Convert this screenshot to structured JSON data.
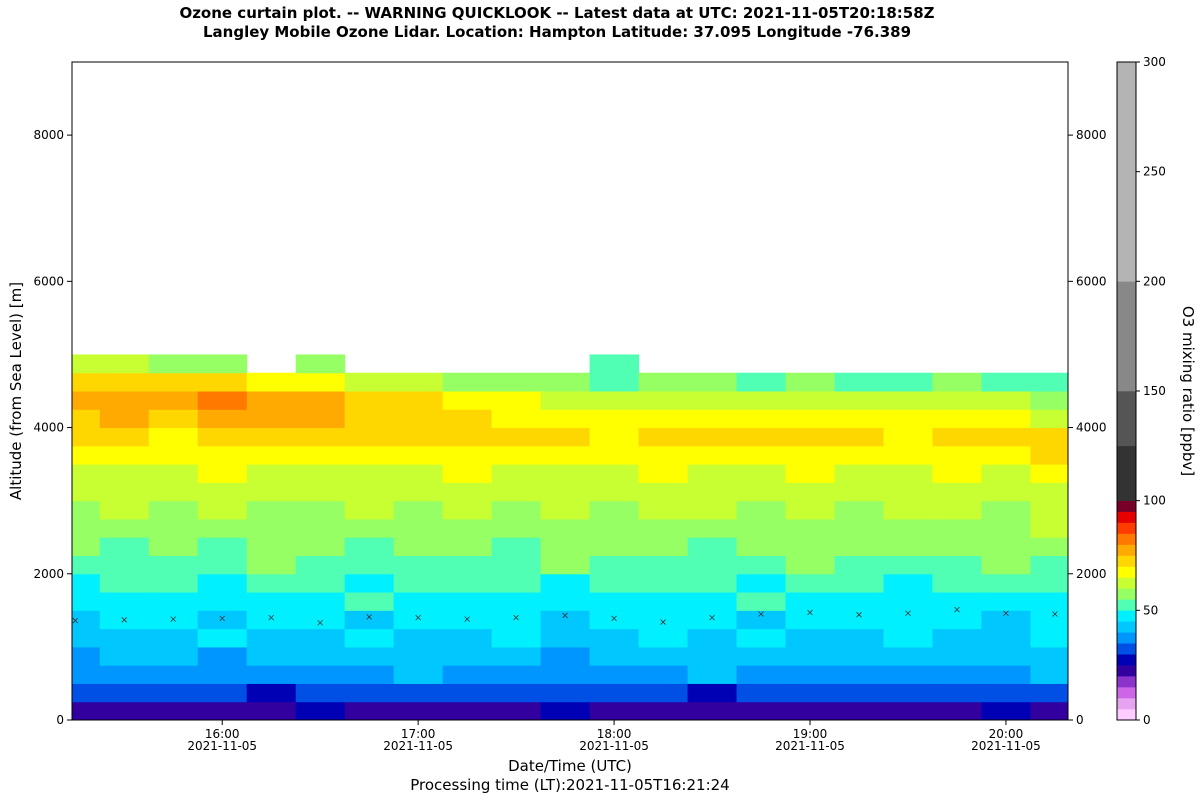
{
  "chart_data": {
    "type": "heatmap",
    "title": "Ozone curtain plot. -- WARNING QUICKLOOK -- Latest data at UTC: 2021-11-05T20:18:58Z",
    "subtitle": "Langley Mobile Ozone Lidar. Location: Hampton Latitude: 37.095 Longitude -76.389",
    "x_label": "Date/Time (UTC)",
    "y_label": "Altitude (from Sea Level) [m]",
    "footnote": "Processing time (LT):2021-11-05T16:21:24",
    "colorbar_label": "O3 mixing ratio [ppbv]",
    "xlim": [
      "2021-11-05T15:14",
      "2021-11-05T20:19"
    ],
    "xticks": [
      {
        "value": "2021-11-05T16:00",
        "label": [
          "16:00",
          "2021-11-05"
        ]
      },
      {
        "value": "2021-11-05T17:00",
        "label": [
          "17:00",
          "2021-11-05"
        ]
      },
      {
        "value": "2021-11-05T18:00",
        "label": [
          "18:00",
          "2021-11-05"
        ]
      },
      {
        "value": "2021-11-05T19:00",
        "label": [
          "19:00",
          "2021-11-05"
        ]
      },
      {
        "value": "2021-11-05T20:00",
        "label": [
          "20:00",
          "2021-11-05"
        ]
      }
    ],
    "ylim": [
      0,
      9000
    ],
    "yticks": [
      0,
      2000,
      4000,
      6000,
      8000
    ],
    "x": [
      "2021-11-05T15:15",
      "2021-11-05T15:30",
      "2021-11-05T15:45",
      "2021-11-05T16:00",
      "2021-11-05T16:15",
      "2021-11-05T16:30",
      "2021-11-05T16:45",
      "2021-11-05T17:00",
      "2021-11-05T17:15",
      "2021-11-05T17:30",
      "2021-11-05T17:45",
      "2021-11-05T18:00",
      "2021-11-05T18:15",
      "2021-11-05T18:30",
      "2021-11-05T18:45",
      "2021-11-05T19:00",
      "2021-11-05T19:15",
      "2021-11-05T19:30",
      "2021-11-05T19:45",
      "2021-11-05T20:00",
      "2021-11-05T20:15"
    ],
    "x_step_minutes": 15,
    "y_edges": [
      0,
      250,
      500,
      750,
      1000,
      1250,
      1500,
      1750,
      2000,
      2250,
      2500,
      2750,
      3000,
      3250,
      3500,
      3750,
      4000,
      4250,
      4500,
      4750,
      5000
    ],
    "z": [
      [
        22,
        24,
        23,
        22,
        24,
        25,
        23,
        22,
        24,
        23,
        25,
        24,
        22,
        23,
        24,
        23,
        22,
        24,
        23,
        25,
        24
      ],
      [
        32,
        30,
        33,
        31,
        29,
        32,
        34,
        30,
        31,
        33,
        30,
        32,
        31,
        29,
        33,
        32,
        30,
        31,
        34,
        32,
        30
      ],
      [
        36,
        38,
        35,
        37,
        39,
        36,
        38,
        40,
        37,
        36,
        39,
        38,
        37,
        40,
        36,
        38,
        39,
        37,
        36,
        38,
        40
      ],
      [
        38,
        40,
        42,
        39,
        41,
        43,
        40,
        42,
        44,
        41,
        39,
        42,
        43,
        40,
        44,
        42,
        41,
        43,
        40,
        42,
        44
      ],
      [
        42,
        44,
        41,
        45,
        43,
        42,
        46,
        44,
        43,
        45,
        42,
        44,
        46,
        43,
        45,
        44,
        42,
        46,
        44,
        43,
        45
      ],
      [
        44,
        46,
        45,
        43,
        47,
        45,
        44,
        46,
        48,
        45,
        44,
        47,
        45,
        46,
        44,
        48,
        45,
        46,
        47,
        44,
        46
      ],
      [
        47,
        48,
        46,
        49,
        47,
        48,
        50,
        47,
        46,
        49,
        48,
        47,
        49,
        48,
        50,
        46,
        48,
        47,
        49,
        48,
        47
      ],
      [
        49,
        50,
        51,
        49,
        52,
        50,
        49,
        51,
        50,
        52,
        49,
        51,
        50,
        52,
        49,
        51,
        50,
        49,
        52,
        50,
        51
      ],
      [
        52,
        54,
        53,
        51,
        55,
        52,
        53,
        54,
        51,
        53,
        55,
        52,
        54,
        53,
        52,
        55,
        53,
        54,
        52,
        56,
        53
      ],
      [
        55,
        54,
        56,
        53,
        55,
        57,
        54,
        56,
        55,
        53,
        57,
        55,
        56,
        54,
        57,
        55,
        56,
        58,
        55,
        57,
        56
      ],
      [
        57,
        58,
        55,
        59,
        57,
        56,
        58,
        57,
        59,
        56,
        58,
        57,
        55,
        59,
        57,
        58,
        56,
        59,
        57,
        58,
        60
      ],
      [
        59,
        60,
        58,
        61,
        59,
        57,
        60,
        58,
        62,
        59,
        60,
        58,
        61,
        60,
        59,
        62,
        58,
        60,
        61,
        59,
        62
      ],
      [
        61,
        62,
        60,
        63,
        61,
        62,
        60,
        63,
        61,
        62,
        64,
        61,
        63,
        62,
        60,
        63,
        62,
        61,
        64,
        62,
        63
      ],
      [
        63,
        64,
        62,
        65,
        63,
        61,
        64,
        62,
        66,
        63,
        64,
        62,
        65,
        63,
        64,
        66,
        63,
        62,
        65,
        64,
        66
      ],
      [
        66,
        67,
        65,
        68,
        66,
        67,
        69,
        66,
        68,
        65,
        67,
        66,
        68,
        67,
        65,
        68,
        66,
        67,
        69,
        66,
        70
      ],
      [
        70,
        72,
        69,
        73,
        71,
        72,
        74,
        73,
        71,
        70,
        72,
        69,
        73,
        71,
        70,
        72,
        71,
        69,
        73,
        70,
        71
      ],
      [
        74,
        76,
        73,
        78,
        77,
        75,
        74,
        72,
        70,
        69,
        68,
        67,
        69,
        66,
        67,
        68,
        66,
        67,
        68,
        66,
        64
      ],
      [
        76,
        79,
        75,
        80,
        78,
        76,
        73,
        71,
        68,
        66,
        64,
        63,
        62,
        61,
        63,
        60,
        62,
        61,
        63,
        60,
        58
      ],
      [
        72,
        74,
        70,
        71,
        68,
        66,
        64,
        60,
        58,
        56,
        55,
        54,
        55,
        58,
        54,
        55,
        53,
        54,
        55,
        54,
        53
      ],
      [
        62,
        60,
        58,
        56,
        null,
        58,
        null,
        null,
        null,
        null,
        null,
        54,
        null,
        null,
        null,
        null,
        null,
        null,
        null,
        null,
        null
      ]
    ],
    "pbl": {
      "marker": "x",
      "color": "#333333",
      "values": [
        1360,
        1370,
        1380,
        1390,
        1400,
        1330,
        1410,
        1400,
        1380,
        1400,
        1430,
        1390,
        1340,
        1400,
        1450,
        1470,
        1440,
        1460,
        1510,
        1460,
        1450
      ]
    },
    "levels": [
      0,
      5,
      10,
      15,
      20,
      25,
      30,
      35,
      40,
      45,
      50,
      55,
      60,
      65,
      70,
      75,
      80,
      85,
      90,
      95,
      100,
      125,
      150,
      200,
      300
    ],
    "colors": [
      "#ffccff",
      "#e6a3f0",
      "#cc66e6",
      "#8c33cc",
      "#3300a0",
      "#0000b4",
      "#0050e6",
      "#0096ff",
      "#00c8ff",
      "#00f0ff",
      "#50ffb4",
      "#96ff64",
      "#c8ff32",
      "#ffff00",
      "#ffd700",
      "#ffaa00",
      "#ff7800",
      "#ff3c00",
      "#e60000",
      "#780028",
      "#333333",
      "#555555",
      "#888888",
      "#b4b4b4"
    ],
    "colorbar_ticks": [
      0,
      50,
      100,
      150,
      200,
      250,
      300
    ]
  }
}
